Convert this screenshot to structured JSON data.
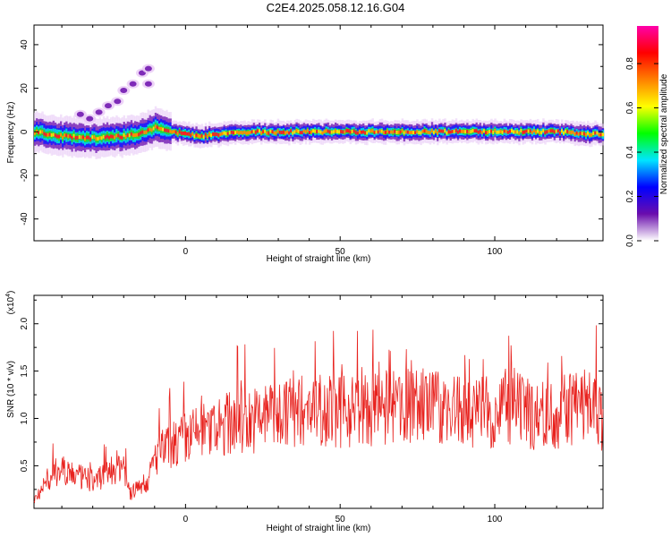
{
  "title": "C2E4.2025.058.12.16.G04",
  "chart_data": [
    {
      "type": "heatmap",
      "xlabel": "Height of straight line (km)",
      "ylabel": "Frequency (Hz)",
      "xlim": [
        -49,
        135
      ],
      "ylim": [
        -50,
        49
      ],
      "xticks": [
        "0",
        "50",
        "100"
      ],
      "yticks": [
        "-40",
        "-20",
        "0",
        "20",
        "40"
      ],
      "ridge_frequency_hz": [
        [
          -49,
          0
        ],
        [
          -40,
          -2
        ],
        [
          -30,
          -3
        ],
        [
          -20,
          -2
        ],
        [
          -13,
          0
        ],
        [
          -10,
          2
        ],
        [
          -5,
          0
        ],
        [
          0,
          -1
        ],
        [
          5,
          -2
        ],
        [
          10,
          -1
        ],
        [
          20,
          0
        ],
        [
          30,
          0
        ],
        [
          40,
          0
        ],
        [
          50,
          0
        ],
        [
          60,
          0
        ],
        [
          70,
          0
        ],
        [
          80,
          0
        ],
        [
          90,
          0
        ],
        [
          100,
          0
        ],
        [
          110,
          0
        ],
        [
          120,
          0
        ],
        [
          130,
          -1
        ],
        [
          135,
          -1
        ]
      ],
      "scatter_blobs_hz": [
        [
          -34,
          8
        ],
        [
          -31,
          6
        ],
        [
          -28,
          9
        ],
        [
          -25,
          12
        ],
        [
          -22,
          14
        ],
        [
          -20,
          19
        ],
        [
          -17,
          22
        ],
        [
          -14,
          27
        ],
        [
          -12,
          29
        ],
        [
          -12,
          22
        ]
      ],
      "colorbar": {
        "label": "Normalized spectral amplitude",
        "ticks": [
          "0.0",
          "0.2",
          "0.4",
          "0.6",
          "0.8"
        ],
        "range": [
          0,
          0.97
        ],
        "colors": [
          "#ffffff",
          "#6a0dad",
          "#0000ff",
          "#00e5ff",
          "#00ff00",
          "#ffff00",
          "#ff8000",
          "#ff0000",
          "#ff00aa"
        ]
      }
    },
    {
      "type": "line",
      "xlabel": "Height of straight line (km)",
      "ylabel": "SNR (10 * v/v)",
      "y_multiplier": "(x10",
      "y_multiplier_exp": "4",
      "y_multiplier_close": ")",
      "xlim": [
        -49,
        135
      ],
      "ylim": [
        0.05,
        2.3
      ],
      "xticks": [
        "0",
        "50",
        "100"
      ],
      "yticks": [
        "0.5",
        "1.0",
        "1.5",
        "2.0"
      ],
      "color": "#e8221e",
      "series": [
        {
          "x": [
            -49,
            -45,
            -40,
            -35,
            -30,
            -25,
            -20,
            -18,
            -15,
            -12,
            -10,
            -5,
            0,
            5,
            10,
            15,
            20,
            25,
            30,
            35,
            40,
            45,
            50,
            55,
            60,
            65,
            70,
            75,
            80,
            85,
            90,
            95,
            100,
            105,
            110,
            115,
            120,
            125,
            130,
            135
          ],
          "values": [
            0.15,
            0.35,
            0.5,
            0.4,
            0.35,
            0.45,
            0.55,
            0.2,
            0.3,
            0.35,
            0.6,
            0.75,
            0.8,
            0.9,
            0.9,
            1.0,
            1.0,
            1.05,
            1.1,
            1.1,
            1.15,
            1.15,
            1.1,
            1.15,
            1.1,
            1.15,
            1.15,
            1.2,
            1.15,
            1.15,
            1.1,
            1.1,
            1.1,
            1.15,
            1.1,
            1.05,
            1.1,
            1.15,
            1.2,
            1.05
          ]
        }
      ]
    }
  ]
}
